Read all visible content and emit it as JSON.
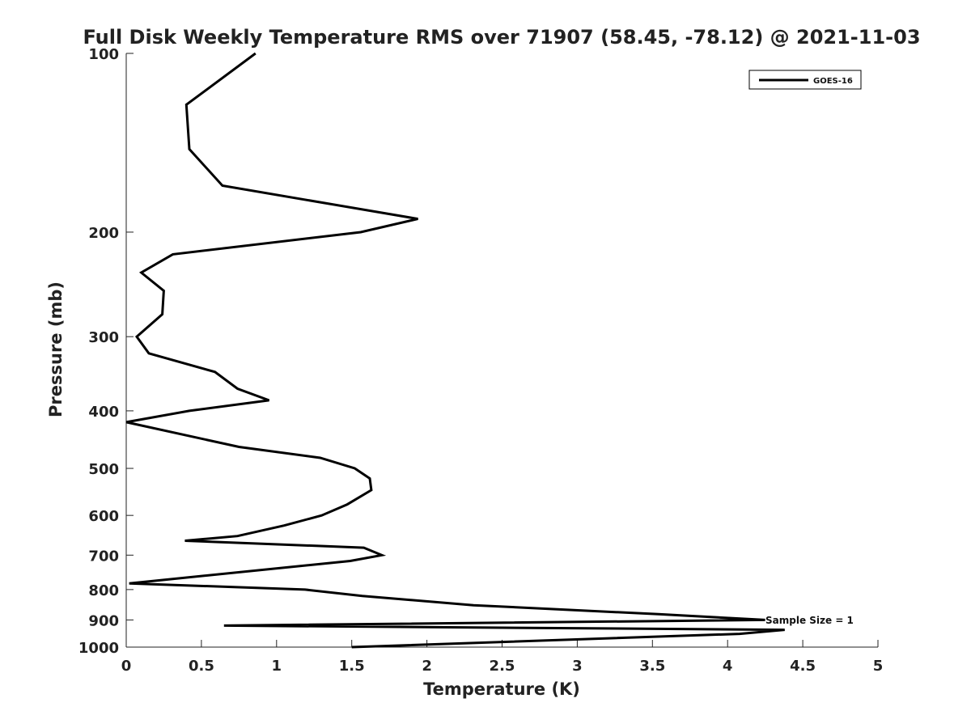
{
  "chart_data": {
    "type": "line",
    "title": "Full Disk Weekly Temperature RMS over 71907 (58.45, -78.12) @ 2021-11-03",
    "xlabel": "Temperature (K)",
    "ylabel": "Pressure (mb)",
    "xlim": [
      0,
      5
    ],
    "ylim": [
      100,
      1000
    ],
    "y_scale": "log",
    "y_reversed": true,
    "x_ticks": [
      0,
      0.5,
      1,
      1.5,
      2,
      2.5,
      3,
      3.5,
      4,
      4.5,
      5
    ],
    "x_tick_labels": [
      "0",
      "0.5",
      "1",
      "1.5",
      "2",
      "2.5",
      "3",
      "3.5",
      "4",
      "4.5",
      "5"
    ],
    "y_ticks": [
      100,
      200,
      300,
      400,
      500,
      600,
      700,
      800,
      900,
      1000
    ],
    "y_tick_labels": [
      "100",
      "200",
      "300",
      "400",
      "500",
      "600",
      "700",
      "800",
      "900",
      "1000"
    ],
    "grid": false,
    "legend_position": "top-right",
    "series": [
      {
        "name": "GOES-16",
        "color": "#000000",
        "x": [
          0.86,
          0.4,
          0.42,
          0.64,
          1.94,
          1.56,
          0.31,
          0.1,
          0.25,
          0.24,
          0.07,
          0.15,
          0.59,
          0.74,
          0.95,
          0.42,
          0.0,
          0.75,
          1.29,
          1.52,
          1.62,
          1.63,
          1.47,
          1.3,
          1.05,
          0.74,
          0.39,
          1.58,
          1.7,
          1.49,
          0.02,
          1.19,
          1.57,
          2.31,
          3.54,
          4.25,
          0.65,
          4.38,
          4.08,
          1.5
        ],
        "y": [
          100,
          122,
          145,
          167,
          190,
          200,
          218,
          234,
          251,
          275,
          300,
          320,
          344,
          367,
          384,
          400,
          418,
          460,
          480,
          500,
          520,
          544,
          575,
          600,
          624,
          650,
          662,
          680,
          700,
          716,
          781,
          800,
          820,
          850,
          880,
          900,
          920,
          935,
          950,
          1000
        ]
      }
    ],
    "legend": [
      "GOES-16"
    ],
    "annotation": "Sample Size = 1"
  }
}
